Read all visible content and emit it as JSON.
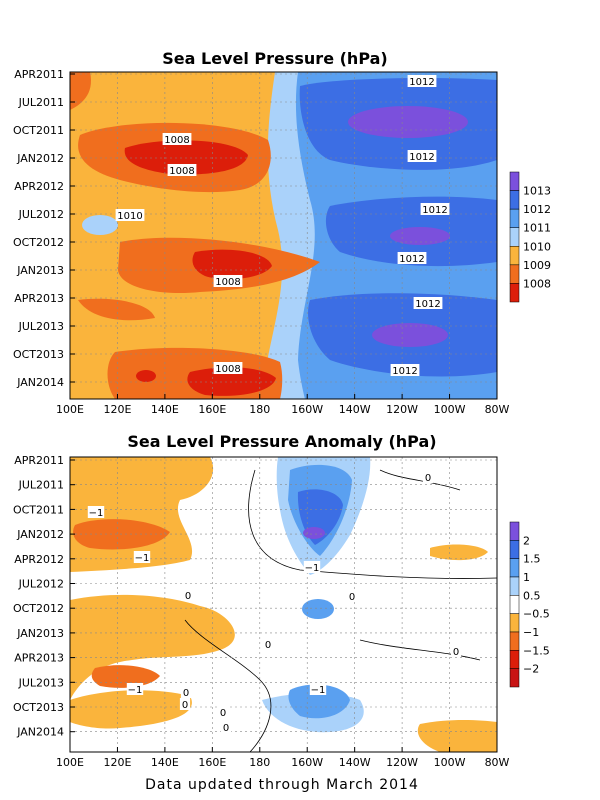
{
  "footer": "Data updated through March 2014",
  "chart_data": [
    {
      "type": "heatmap",
      "title": "Sea Level Pressure (hPa)",
      "xlabel": "",
      "ylabel": "",
      "x_ticks": [
        "100E",
        "120E",
        "140E",
        "160E",
        "180",
        "160W",
        "140W",
        "120W",
        "100W",
        "80W"
      ],
      "y_ticks": [
        "APR2011",
        "JUL2011",
        "OCT2011",
        "JAN2012",
        "APR2012",
        "JUL2012",
        "OCT2012",
        "JAN2013",
        "APR2013",
        "JUL2013",
        "OCT2013",
        "JAN2014"
      ],
      "colorbar": {
        "labels": [
          "1013",
          "1012",
          "1011",
          "1010",
          "1009",
          "1008"
        ],
        "colors": [
          "#7b50dc",
          "#3c6ee4",
          "#5aa0f0",
          "#aad2fa",
          "#fab43c",
          "#f06e1e",
          "#dc1e0a"
        ]
      },
      "contour_labels": [
        "1012",
        "1008",
        "1012",
        "1008",
        "1010",
        "1012",
        "1012",
        "1008",
        "1012",
        "1008",
        "1012"
      ],
      "grid": true
    },
    {
      "type": "heatmap",
      "title": "Sea Level Pressure Anomaly (hPa)",
      "xlabel": "",
      "ylabel": "",
      "x_ticks": [
        "100E",
        "120E",
        "140E",
        "160E",
        "180",
        "160W",
        "140W",
        "120W",
        "100W",
        "80W"
      ],
      "y_ticks": [
        "APR2011",
        "JUL2011",
        "OCT2011",
        "JAN2012",
        "APR2012",
        "JUL2012",
        "OCT2012",
        "JAN2013",
        "APR2013",
        "JUL2013",
        "OCT2013",
        "JAN2014"
      ],
      "colorbar": {
        "labels": [
          "2",
          "1.5",
          "1",
          "0.5",
          "−0.5",
          "−1",
          "−1.5",
          "−2"
        ],
        "colors": [
          "#7b50dc",
          "#3c6ee4",
          "#5aa0f0",
          "#aad2fa",
          "#ffffff",
          "#fab43c",
          "#f06e1e",
          "#dc1e0a",
          "#c81414"
        ]
      },
      "contour_labels": [
        "0",
        "−1",
        "−1",
        "−1",
        "0",
        "0",
        "0",
        "0",
        "−1",
        "0",
        "0",
        "−1",
        "0",
        "0"
      ],
      "grid": true
    }
  ]
}
